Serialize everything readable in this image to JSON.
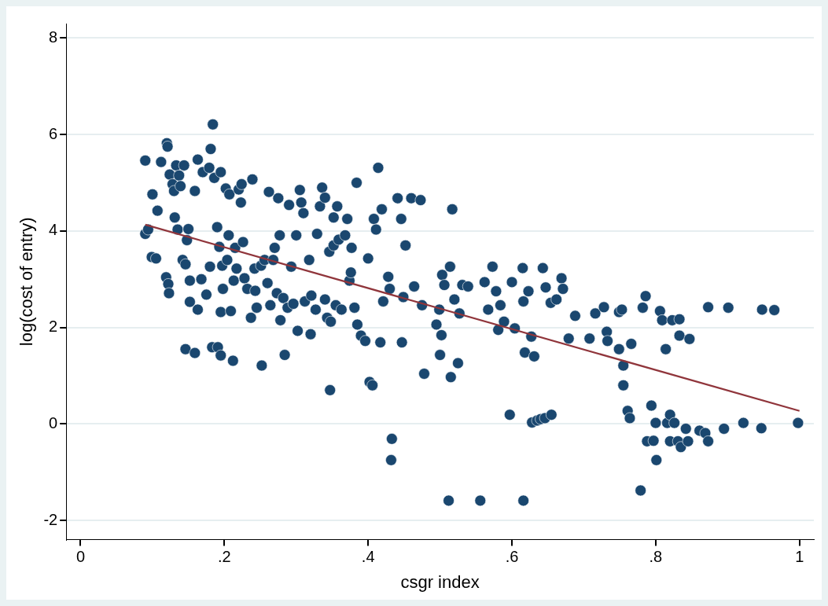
{
  "chart_data": {
    "type": "scatter",
    "xlabel": "csgr index",
    "ylabel": "log(cost of entry)",
    "xlim": [
      -0.02,
      1.02
    ],
    "ylim": [
      -2.4,
      8.3
    ],
    "xticks": [
      {
        "value": 0,
        "label": "0"
      },
      {
        "value": 0.2,
        "label": ".2"
      },
      {
        "value": 0.4,
        "label": ".4"
      },
      {
        "value": 0.6,
        "label": ".6"
      },
      {
        "value": 0.8,
        "label": ".8"
      },
      {
        "value": 1,
        "label": "1"
      }
    ],
    "yticks": [
      -2,
      0,
      2,
      4,
      6,
      8
    ],
    "grid": "y",
    "legend": false,
    "marker": "circle",
    "series": [
      {
        "color": "#1a476f",
        "x": [
          0.09,
          0.09,
          0.094,
          0.1,
          0.099,
          0.107,
          0.105,
          0.112,
          0.12,
          0.121,
          0.119,
          0.122,
          0.123,
          0.124,
          0.128,
          0.13,
          0.131,
          0.133,
          0.137,
          0.139,
          0.135,
          0.142,
          0.144,
          0.146,
          0.148,
          0.15,
          0.146,
          0.152,
          0.152,
          0.159,
          0.159,
          0.163,
          0.163,
          0.168,
          0.17,
          0.175,
          0.179,
          0.18,
          0.181,
          0.184,
          0.183,
          0.186,
          0.191,
          0.19,
          0.193,
          0.195,
          0.195,
          0.195,
          0.197,
          0.198,
          0.202,
          0.204,
          0.206,
          0.207,
          0.209,
          0.212,
          0.213,
          0.215,
          0.217,
          0.22,
          0.223,
          0.224,
          0.226,
          0.228,
          0.232,
          0.237,
          0.239,
          0.242,
          0.243,
          0.245,
          0.251,
          0.252,
          0.256,
          0.26,
          0.262,
          0.264,
          0.268,
          0.27,
          0.273,
          0.275,
          0.277,
          0.278,
          0.282,
          0.284,
          0.288,
          0.29,
          0.293,
          0.296,
          0.3,
          0.302,
          0.305,
          0.307,
          0.31,
          0.312,
          0.318,
          0.32,
          0.321,
          0.327,
          0.329,
          0.333,
          0.336,
          0.34,
          0.34,
          0.343,
          0.346,
          0.348,
          0.352,
          0.347,
          0.352,
          0.355,
          0.357,
          0.359,
          0.363,
          0.368,
          0.371,
          0.374,
          0.376,
          0.377,
          0.381,
          0.384,
          0.385,
          0.39,
          0.396,
          0.4,
          0.402,
          0.406,
          0.408,
          0.411,
          0.414,
          0.419,
          0.421,
          0.417,
          0.428,
          0.43,
          0.433,
          0.432,
          0.441,
          0.446,
          0.447,
          0.449,
          0.452,
          0.46,
          0.464,
          0.473,
          0.475,
          0.478,
          0.495,
          0.499,
          0.5,
          0.502,
          0.503,
          0.506,
          0.512,
          0.514,
          0.515,
          0.517,
          0.52,
          0.525,
          0.527,
          0.531,
          0.539,
          0.556,
          0.562,
          0.567,
          0.573,
          0.578,
          0.581,
          0.584,
          0.589,
          0.597,
          0.6,
          0.604,
          0.615,
          0.616,
          0.618,
          0.616,
          0.623,
          0.627,
          0.631,
          0.628,
          0.635,
          0.64,
          0.646,
          0.655,
          0.643,
          0.647,
          0.654,
          0.662,
          0.669,
          0.671,
          0.679,
          0.688,
          0.708,
          0.716,
          0.728,
          0.732,
          0.733,
          0.749,
          0.753,
          0.749,
          0.755,
          0.755,
          0.761,
          0.764,
          0.766,
          0.779,
          0.782,
          0.786,
          0.794,
          0.788,
          0.797,
          0.8,
          0.801,
          0.806,
          0.809,
          0.814,
          0.816,
          0.82,
          0.82,
          0.823,
          0.826,
          0.831,
          0.833,
          0.835,
          0.833,
          0.845,
          0.842,
          0.847,
          0.861,
          0.869,
          0.873,
          0.873,
          0.895,
          0.901,
          0.922,
          0.948,
          0.947,
          0.965,
          0.998
        ],
        "values": [
          5.46,
          3.94,
          4.03,
          4.76,
          3.46,
          4.42,
          3.43,
          5.43,
          5.82,
          5.75,
          3.04,
          2.9,
          2.71,
          5.17,
          4.97,
          4.83,
          4.28,
          5.36,
          5.15,
          4.93,
          4.03,
          3.4,
          5.36,
          3.31,
          3.81,
          4.04,
          1.55,
          2.53,
          2.97,
          1.47,
          4.83,
          5.48,
          2.37,
          3.0,
          5.22,
          2.68,
          5.31,
          3.26,
          5.7,
          6.21,
          1.59,
          5.1,
          1.59,
          4.08,
          3.67,
          2.32,
          1.42,
          5.22,
          3.28,
          2.8,
          4.88,
          3.4,
          3.91,
          4.76,
          2.34,
          1.31,
          2.97,
          3.65,
          3.22,
          4.86,
          4.59,
          4.97,
          3.77,
          3.02,
          2.8,
          2.2,
          5.07,
          3.22,
          2.76,
          2.41,
          3.28,
          1.21,
          3.4,
          2.92,
          4.81,
          2.46,
          3.4,
          3.65,
          2.71,
          4.68,
          3.91,
          2.15,
          2.61,
          1.43,
          2.41,
          4.54,
          3.26,
          2.49,
          3.91,
          1.93,
          4.85,
          4.59,
          4.37,
          2.54,
          3.4,
          1.86,
          2.66,
          2.37,
          3.94,
          4.51,
          4.9,
          4.69,
          2.58,
          2.2,
          3.57,
          2.12,
          3.7,
          0.7,
          4.28,
          2.46,
          4.51,
          3.82,
          2.37,
          3.91,
          4.25,
          2.97,
          3.14,
          3.65,
          2.41,
          5.0,
          2.06,
          1.83,
          1.72,
          3.43,
          0.87,
          0.8,
          4.25,
          4.03,
          5.31,
          4.45,
          2.54,
          1.69,
          3.05,
          2.8,
          -0.31,
          -0.75,
          4.68,
          4.25,
          1.69,
          2.63,
          3.7,
          4.68,
          2.85,
          4.64,
          2.46,
          1.04,
          2.06,
          2.37,
          1.43,
          1.84,
          3.09,
          2.88,
          -1.59,
          3.26,
          0.97,
          4.45,
          2.58,
          1.26,
          2.29,
          2.88,
          2.85,
          -1.59,
          2.94,
          2.37,
          3.26,
          2.75,
          1.95,
          2.46,
          2.12,
          0.19,
          2.94,
          1.98,
          3.23,
          2.54,
          1.48,
          -1.59,
          2.75,
          1.81,
          1.4,
          0.03,
          0.07,
          0.1,
          0.12,
          0.19,
          3.23,
          2.83,
          2.51,
          2.58,
          3.02,
          2.8,
          1.77,
          2.24,
          1.77,
          2.29,
          2.42,
          1.91,
          1.72,
          2.32,
          2.37,
          1.55,
          1.21,
          0.8,
          0.27,
          0.12,
          1.66,
          -1.38,
          2.41,
          2.65,
          0.38,
          -0.36,
          -0.35,
          0.02,
          -0.75,
          2.34,
          2.15,
          1.55,
          0.02,
          0.19,
          -0.36,
          2.15,
          0.02,
          -0.36,
          2.17,
          -0.48,
          1.83,
          -0.36,
          -0.1,
          1.76,
          -0.14,
          -0.19,
          -0.36,
          2.42,
          -0.1,
          2.41,
          0.02,
          2.37,
          -0.09,
          2.36,
          0.02
        ]
      },
      {
        "type": "line",
        "color": "#90353b",
        "marker": "none",
        "line_style": "solid",
        "x": [
          0.09,
          1.0
        ],
        "values": [
          4.13,
          0.27
        ]
      }
    ]
  }
}
